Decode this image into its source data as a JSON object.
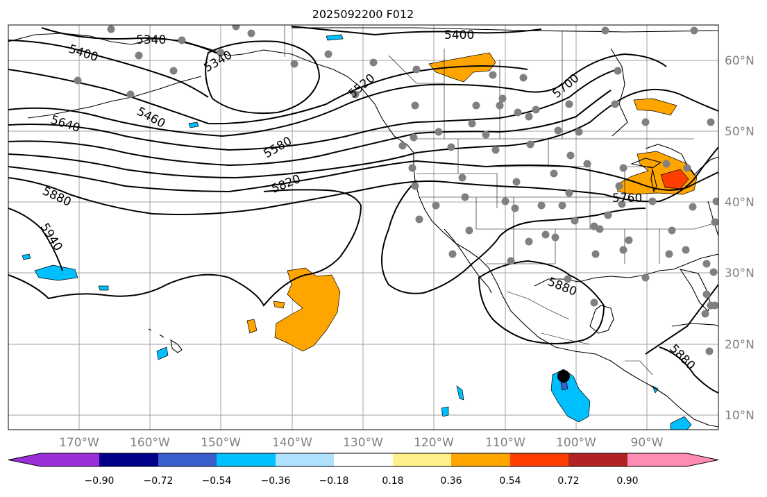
{
  "title": "2025092200 F012",
  "lon_labels": [
    "170°W",
    "160°W",
    "150°W",
    "140°W",
    "130°W",
    "120°W",
    "110°W",
    "100°W",
    "90°W"
  ],
  "lat_labels": [
    "60°N",
    "50°N",
    "40°N",
    "30°N",
    "20°N",
    "10°N"
  ],
  "contour_labels": [
    "5340",
    "5400",
    "5400",
    "5460",
    "5520",
    "5580",
    "5640",
    "5700",
    "5760",
    "5820",
    "5880",
    "5880",
    "5880",
    "5940",
    "5340"
  ],
  "colorbar": {
    "tick_labels": [
      "−0.90",
      "−0.72",
      "−0.54",
      "−0.36",
      "−0.18",
      "0.18",
      "0.36",
      "0.54",
      "0.72",
      "0.90"
    ],
    "colors": [
      "#9b30d9",
      "#00008b",
      "#3a5fcd",
      "#00bfff",
      "#b0e2ff",
      "#ffffff",
      "#fff08a",
      "#ffa500",
      "#ff3f00",
      "#b22222",
      "#ff8cb4"
    ]
  },
  "colors": {
    "contour": "#000000",
    "station": "#808080",
    "positive_fill": "#ffa500",
    "negative_fill": "#00bfff",
    "grid": "#a0a0a0",
    "axis_label": "#808080"
  }
}
